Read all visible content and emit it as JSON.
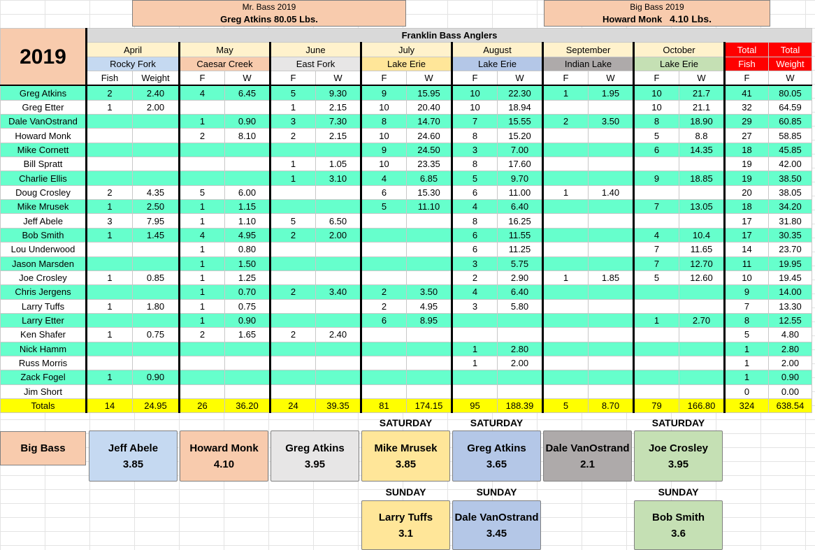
{
  "mr_bass": {
    "title": "Mr. Bass 2019",
    "winner": "Greg Atkins 80.05 Lbs."
  },
  "big_bass_header": {
    "title": "Big Bass 2019",
    "winner": "Howard Monk",
    "weight": "4.10 Lbs."
  },
  "year": "2019",
  "club": "Franklin Bass Anglers",
  "months": [
    {
      "month": "April",
      "lake": "Rocky Fork",
      "fish_hdr": "Fish",
      "weight_hdr": "Weight",
      "color": "#c5d9f1"
    },
    {
      "month": "May",
      "lake": "Caesar Creek",
      "fish_hdr": "F",
      "weight_hdr": "W",
      "color": "#f8cbad"
    },
    {
      "month": "June",
      "lake": "East Fork",
      "fish_hdr": "F",
      "weight_hdr": "W",
      "color": "#e7e6e6"
    },
    {
      "month": "July",
      "lake": "Lake Erie",
      "fish_hdr": "F",
      "weight_hdr": "W",
      "color": "#ffe699"
    },
    {
      "month": "August",
      "lake": "Lake Erie",
      "fish_hdr": "F",
      "weight_hdr": "W",
      "color": "#b4c7e7"
    },
    {
      "month": "September",
      "lake": "Indian Lake",
      "fish_hdr": "F",
      "weight_hdr": "W",
      "color": "#aeaaaa"
    },
    {
      "month": "October",
      "lake": "Lake Erie",
      "fish_hdr": "F",
      "weight_hdr": "W",
      "color": "#c5e0b4"
    }
  ],
  "totals_header": {
    "top_left": "Total",
    "top_right": "Total",
    "fish": "Fish",
    "weight": "Weight",
    "color": "#ff0000"
  },
  "rows": [
    {
      "name": "Greg Atkins",
      "cells": [
        "2",
        "2.40",
        "4",
        "6.45",
        "5",
        "9.30",
        "9",
        "15.95",
        "10",
        "22.30",
        "1",
        "1.95",
        "10",
        "21.7"
      ],
      "total_fish": "41",
      "total_weight": "80.05"
    },
    {
      "name": "Greg Etter",
      "cells": [
        "1",
        "2.00",
        "",
        "",
        "1",
        "2.15",
        "10",
        "20.40",
        "10",
        "18.94",
        "",
        "",
        "10",
        "21.1"
      ],
      "total_fish": "32",
      "total_weight": "64.59"
    },
    {
      "name": "Dale VanOstrand",
      "cells": [
        "",
        "",
        "1",
        "0.90",
        "3",
        "7.30",
        "8",
        "14.70",
        "7",
        "15.55",
        "2",
        "3.50",
        "8",
        "18.90"
      ],
      "total_fish": "29",
      "total_weight": "60.85"
    },
    {
      "name": "Howard Monk",
      "cells": [
        "",
        "",
        "2",
        "8.10",
        "2",
        "2.15",
        "10",
        "24.60",
        "8",
        "15.20",
        "",
        "",
        "5",
        "8.8"
      ],
      "total_fish": "27",
      "total_weight": "58.85"
    },
    {
      "name": "Mike Cornett",
      "cells": [
        "",
        "",
        "",
        "",
        "",
        "",
        "9",
        "24.50",
        "3",
        "7.00",
        "",
        "",
        "6",
        "14.35"
      ],
      "total_fish": "18",
      "total_weight": "45.85"
    },
    {
      "name": "Bill Spratt",
      "cells": [
        "",
        "",
        "",
        "",
        "1",
        "1.05",
        "10",
        "23.35",
        "8",
        "17.60",
        "",
        "",
        "",
        ""
      ],
      "total_fish": "19",
      "total_weight": "42.00"
    },
    {
      "name": "Charlie Ellis",
      "cells": [
        "",
        "",
        "",
        "",
        "1",
        "3.10",
        "4",
        "6.85",
        "5",
        "9.70",
        "",
        "",
        "9",
        "18.85"
      ],
      "total_fish": "19",
      "total_weight": "38.50"
    },
    {
      "name": "Doug Crosley",
      "cells": [
        "2",
        "4.35",
        "5",
        "6.00",
        "",
        "",
        "6",
        "15.30",
        "6",
        "11.00",
        "1",
        "1.40",
        "",
        ""
      ],
      "total_fish": "20",
      "total_weight": "38.05"
    },
    {
      "name": "Mike Mrusek",
      "cells": [
        "1",
        "2.50",
        "1",
        "1.15",
        "",
        "",
        "5",
        "11.10",
        "4",
        "6.40",
        "",
        "",
        "7",
        "13.05"
      ],
      "total_fish": "18",
      "total_weight": "34.20"
    },
    {
      "name": "Jeff Abele",
      "cells": [
        "3",
        "7.95",
        "1",
        "1.10",
        "5",
        "6.50",
        "",
        "",
        "8",
        "16.25",
        "",
        "",
        "",
        ""
      ],
      "total_fish": "17",
      "total_weight": "31.80"
    },
    {
      "name": "Bob Smith",
      "cells": [
        "1",
        "1.45",
        "4",
        "4.95",
        "2",
        "2.00",
        "",
        "",
        "6",
        "11.55",
        "",
        "",
        "4",
        "10.4"
      ],
      "total_fish": "17",
      "total_weight": "30.35"
    },
    {
      "name": "Lou Underwood",
      "cells": [
        "",
        "",
        "1",
        "0.80",
        "",
        "",
        "",
        "",
        "6",
        "11.25",
        "",
        "",
        "7",
        "11.65"
      ],
      "total_fish": "14",
      "total_weight": "23.70"
    },
    {
      "name": "Jason Marsden",
      "cells": [
        "",
        "",
        "1",
        "1.50",
        "",
        "",
        "",
        "",
        "3",
        "5.75",
        "",
        "",
        "7",
        "12.70"
      ],
      "total_fish": "11",
      "total_weight": "19.95"
    },
    {
      "name": "Joe Crosley",
      "cells": [
        "1",
        "0.85",
        "1",
        "1.25",
        "",
        "",
        "",
        "",
        "2",
        "2.90",
        "1",
        "1.85",
        "5",
        "12.60"
      ],
      "total_fish": "10",
      "total_weight": "19.45"
    },
    {
      "name": "Chris Jergens",
      "cells": [
        "",
        "",
        "1",
        "0.70",
        "2",
        "3.40",
        "2",
        "3.50",
        "4",
        "6.40",
        "",
        "",
        "",
        ""
      ],
      "total_fish": "9",
      "total_weight": "14.00"
    },
    {
      "name": "Larry Tuffs",
      "cells": [
        "1",
        "1.80",
        "1",
        "0.75",
        "",
        "",
        "2",
        "4.95",
        "3",
        "5.80",
        "",
        "",
        "",
        ""
      ],
      "total_fish": "7",
      "total_weight": "13.30"
    },
    {
      "name": "Larry Etter",
      "cells": [
        "",
        "",
        "1",
        "0.90",
        "",
        "",
        "6",
        "8.95",
        "",
        "",
        "",
        "",
        "1",
        "2.70"
      ],
      "total_fish": "8",
      "total_weight": "12.55"
    },
    {
      "name": "Ken Shafer",
      "cells": [
        "1",
        "0.75",
        "2",
        "1.65",
        "2",
        "2.40",
        "",
        "",
        "",
        "",
        "",
        "",
        "",
        ""
      ],
      "total_fish": "5",
      "total_weight": "4.80"
    },
    {
      "name": "Nick Hamm",
      "cells": [
        "",
        "",
        "",
        "",
        "",
        "",
        "",
        "",
        "1",
        "2.80",
        "",
        "",
        "",
        ""
      ],
      "total_fish": "1",
      "total_weight": "2.80"
    },
    {
      "name": "Russ Morris",
      "cells": [
        "",
        "",
        "",
        "",
        "",
        "",
        "",
        "",
        "1",
        "2.00",
        "",
        "",
        "",
        ""
      ],
      "total_fish": "1",
      "total_weight": "2.00"
    },
    {
      "name": "Zack Fogel",
      "cells": [
        "1",
        "0.90",
        "",
        "",
        "",
        "",
        "",
        "",
        "",
        "",
        "",
        "",
        "",
        ""
      ],
      "total_fish": "1",
      "total_weight": "0.90"
    },
    {
      "name": "Jim Short",
      "cells": [
        "",
        "",
        "",
        "",
        "",
        "",
        "",
        "",
        "",
        "",
        "",
        "",
        "",
        ""
      ],
      "total_fish": "0",
      "total_weight": "0.00"
    }
  ],
  "totals": {
    "label": "Totals",
    "cells": [
      "14",
      "24.95",
      "26",
      "36.20",
      "24",
      "39.35",
      "81",
      "174.15",
      "95",
      "188.39",
      "5",
      "8.70",
      "79",
      "166.80"
    ],
    "total_fish": "324",
    "total_weight": "638.54"
  },
  "big_bass_section": {
    "label": "Big Bass",
    "saturday_label": "SATURDAY",
    "sunday_label": "SUNDAY",
    "winners": [
      {
        "name": "Jeff Abele",
        "weight": "3.85"
      },
      {
        "name": "Howard Monk",
        "weight": "4.10"
      },
      {
        "name": "Greg Atkins",
        "weight": "3.95"
      },
      {
        "name": "Mike Mrusek",
        "weight": "3.85"
      },
      {
        "name": "Greg Atkins",
        "weight": "3.65"
      },
      {
        "name": "Dale VanOstrand",
        "weight": "2.1"
      },
      {
        "name": "Joe Crosley",
        "weight": "3.95"
      }
    ],
    "sunday_winners": [
      {
        "name": "Larry Tuffs",
        "weight": "3.1"
      },
      {
        "name": "Dale VanOstrand",
        "weight": "3.45"
      },
      {
        "name": "Bob Smith",
        "weight": "3.6"
      }
    ]
  }
}
